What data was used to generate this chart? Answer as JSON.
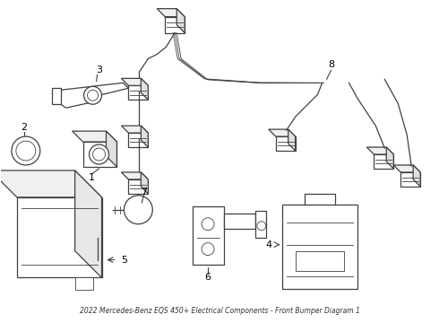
{
  "title": "2022 Mercedes-Benz EQS 450+ Electrical Components - Front Bumper Diagram 1",
  "background_color": "#ffffff",
  "line_color": "#404040",
  "label_color": "#000000",
  "figsize": [
    4.9,
    3.6
  ],
  "dpi": 100
}
